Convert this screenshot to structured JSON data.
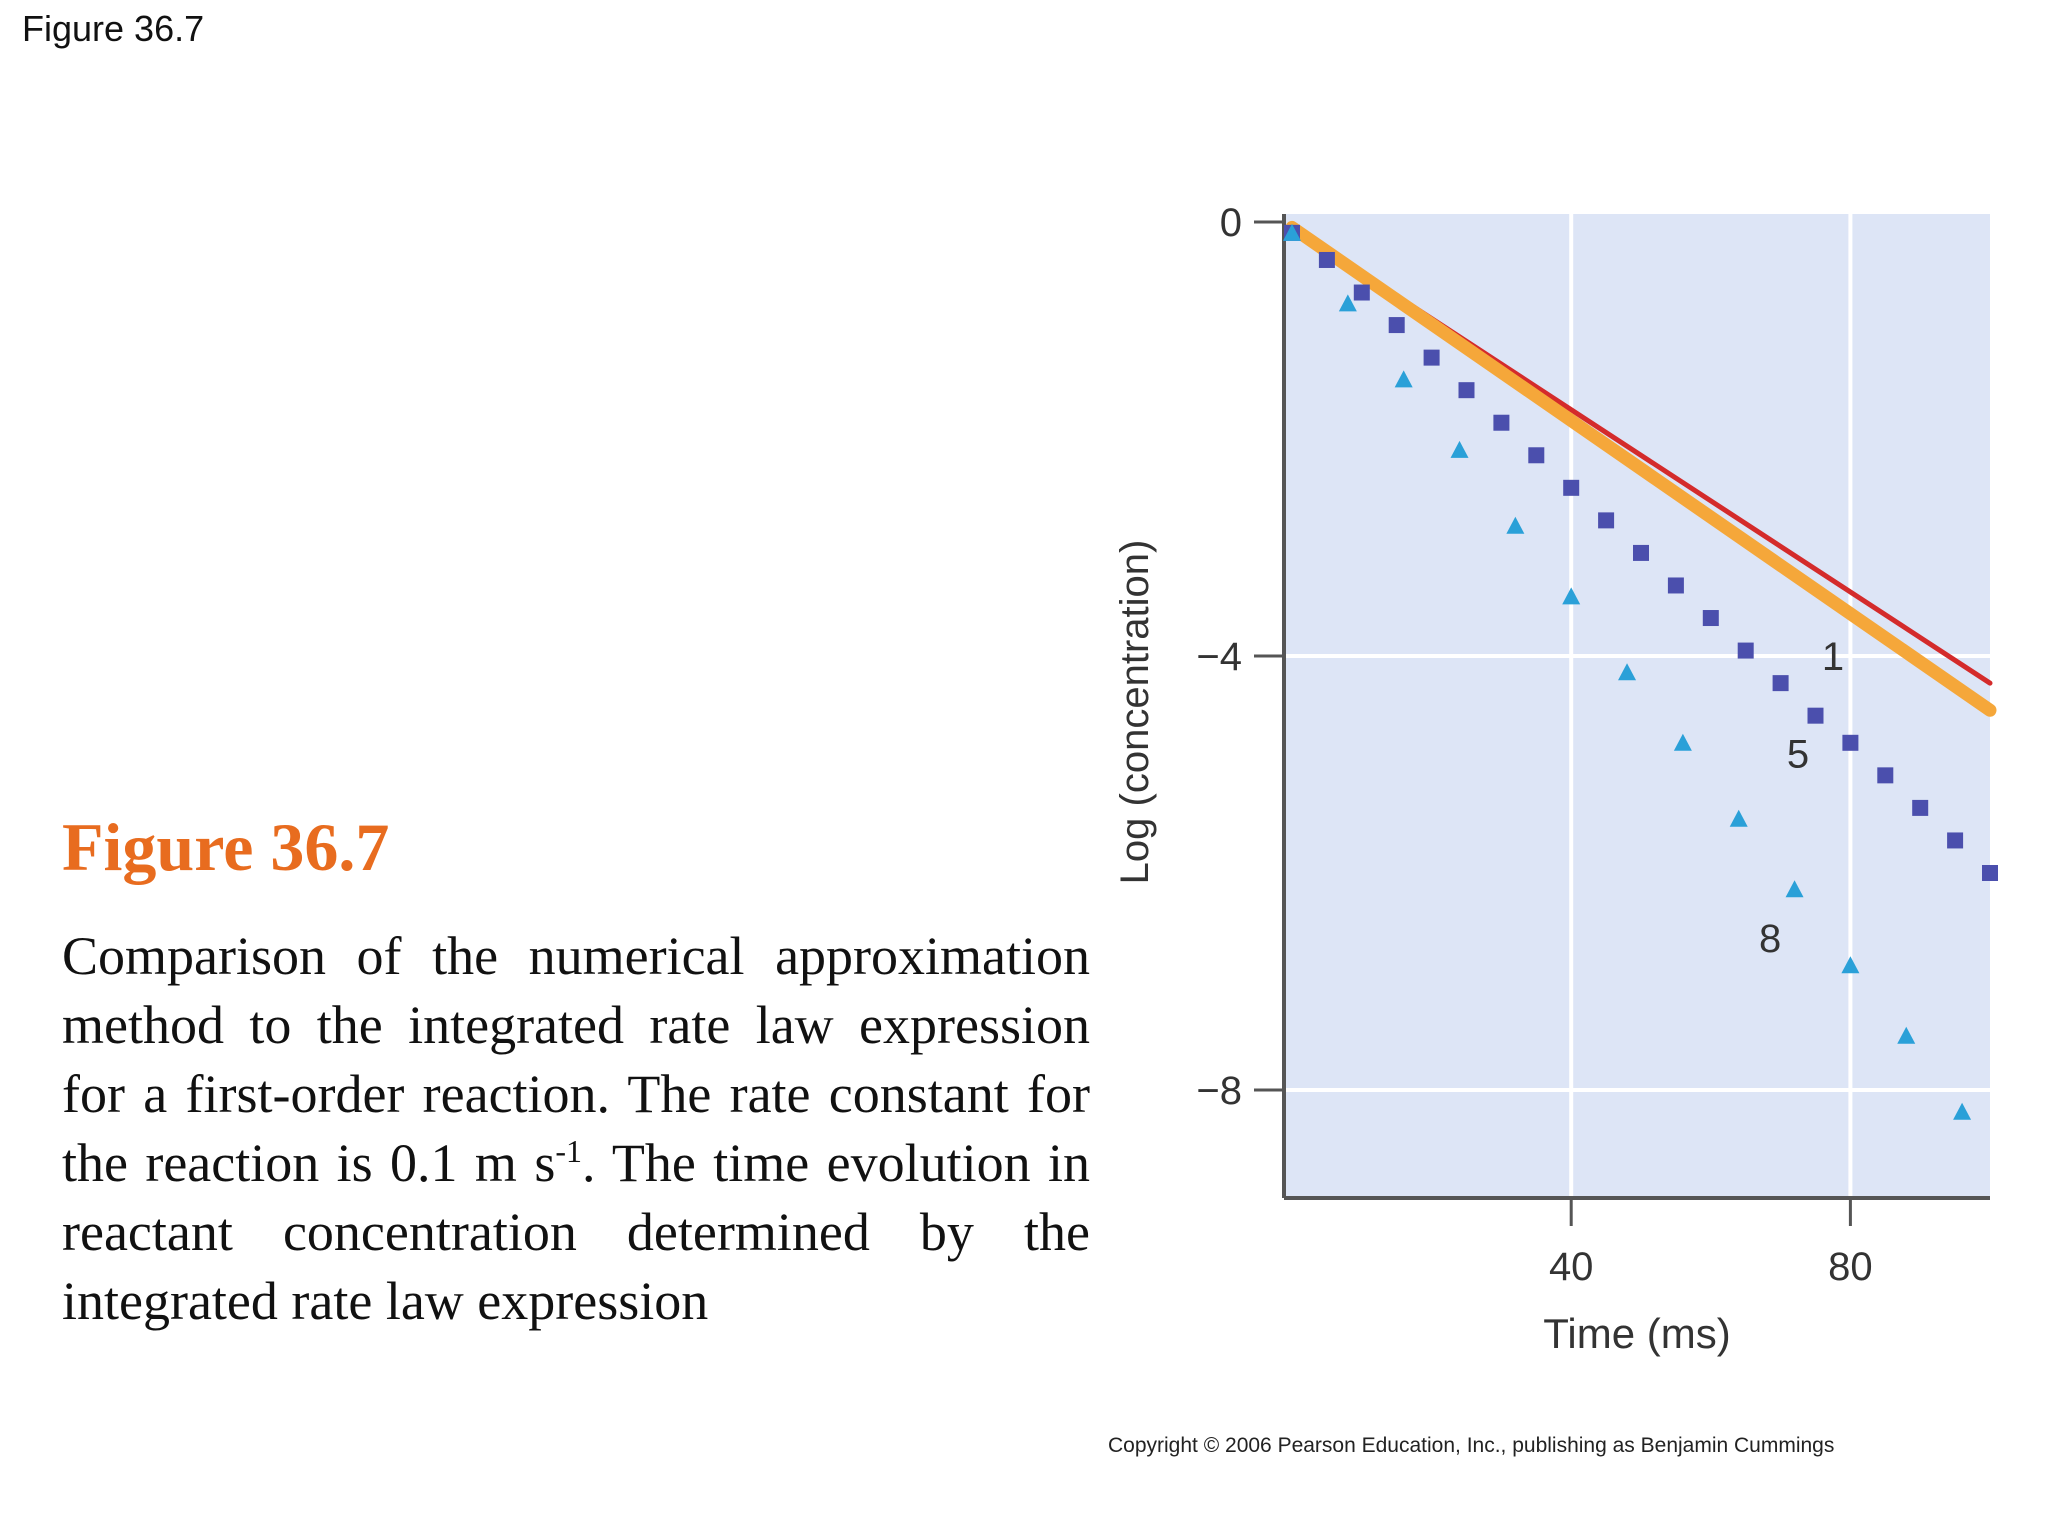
{
  "slide_label": "Figure 36.7",
  "caption": {
    "title": "Figure 36.7",
    "body_part1": "Comparison of the numerical approximation method to the integrated rate law expression for a first-order reaction. The rate constant for the reaction is 0.1 m s",
    "body_sup": "-1",
    "body_part2": ". The time evolution in reactant concentration determined by the integrated rate law expression"
  },
  "copyright": "Copyright © 2006 Pearson Education, Inc., publishing as Benjamin Cummings",
  "colors": {
    "plot_background": "#dde5f6",
    "integrated_line": "#d42b2b",
    "approx_line": "#f5a73a",
    "squares": "#4b4fad",
    "triangles": "#2aa0d8",
    "grid": "#ffffff"
  },
  "chart_data": {
    "type": "scatter",
    "xlabel": "Time (ms)",
    "ylabel": "Log (concentration)",
    "xlim": [
      0,
      100
    ],
    "ylim": [
      -10,
      0
    ],
    "x_ticks": [
      40,
      80
    ],
    "x_tick_labels": [
      "40",
      "80"
    ],
    "y_ticks": [
      0,
      -4,
      -8
    ],
    "y_tick_labels": [
      "0",
      "−4",
      "−8"
    ],
    "grid": true,
    "series": [
      {
        "name": "1",
        "kind": "line",
        "x": [
          0,
          100
        ],
        "y": [
          -0.05,
          -4.25
        ]
      },
      {
        "name": "",
        "kind": "line",
        "x": [
          0,
          100
        ],
        "y": [
          -0.05,
          -4.5
        ]
      },
      {
        "name": "5",
        "kind": "square-markers",
        "x": [
          0,
          5,
          10,
          15,
          20,
          25,
          30,
          35,
          40,
          45,
          50,
          55,
          60,
          65,
          70,
          75,
          80,
          85,
          90,
          95,
          100
        ],
        "y": [
          -0.1,
          -0.35,
          -0.65,
          -0.95,
          -1.25,
          -1.55,
          -1.85,
          -2.15,
          -2.45,
          -2.75,
          -3.05,
          -3.35,
          -3.65,
          -3.95,
          -4.25,
          -4.55,
          -4.8,
          -5.1,
          -5.4,
          -5.7,
          -6.0
        ]
      },
      {
        "name": "8",
        "kind": "triangle-markers",
        "x": [
          0,
          8,
          16,
          24,
          32,
          40,
          48,
          56,
          64,
          72,
          80,
          88,
          96
        ],
        "y": [
          -0.1,
          -0.75,
          -1.45,
          -2.1,
          -2.8,
          -3.45,
          -4.15,
          -4.8,
          -5.5,
          -6.15,
          -6.85,
          -7.5,
          -8.2
        ]
      }
    ],
    "annotations": [
      {
        "text": "1",
        "x": 77.5,
        "y": -4.0
      },
      {
        "text": "5",
        "x": 72.5,
        "y": -4.9
      },
      {
        "text": "8",
        "x": 68.5,
        "y": -6.6
      }
    ]
  }
}
